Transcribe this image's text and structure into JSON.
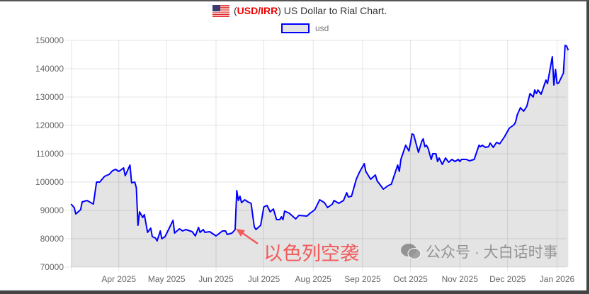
{
  "title": {
    "prefix": "(",
    "pair": "USD/IRR",
    "suffix": ") US Dollar to Rial Chart.",
    "flag_icon": "us-flag-icon"
  },
  "annotation": {
    "text": "以色列空袭"
  },
  "watermark": {
    "text": "公众号 · 大白话时事",
    "icon": "wechat-icon"
  },
  "colors": {
    "line": "#0000ff",
    "fill": "#e4e4e4",
    "annotation": "#f25a5a",
    "pair": "#ee0000"
  },
  "chart_data": {
    "type": "area",
    "legend": {
      "entries": [
        "usd"
      ],
      "placement": "top"
    },
    "ylim": [
      70000,
      150000
    ],
    "yticks": [
      70000,
      80000,
      90000,
      100000,
      110000,
      120000,
      130000,
      140000,
      150000
    ],
    "xlim": [
      "2025-03-01",
      "2026-01-08"
    ],
    "xticks": [
      {
        "date": "2025-04-01",
        "label": "Apr 2025"
      },
      {
        "date": "2025-05-01",
        "label": "May 2025"
      },
      {
        "date": "2025-06-01",
        "label": "Jun 2025"
      },
      {
        "date": "2025-07-01",
        "label": "Jul 2025"
      },
      {
        "date": "2025-08-01",
        "label": "Aug 2025"
      },
      {
        "date": "2025-09-01",
        "label": "Sep 2025"
      },
      {
        "date": "2025-10-01",
        "label": "Oct 2025"
      },
      {
        "date": "2025-11-01",
        "label": "Nov 2025"
      },
      {
        "date": "2025-12-01",
        "label": "Dec 2025"
      },
      {
        "date": "2026-01-01",
        "label": "Jan 2026"
      }
    ],
    "grid": true,
    "series": [
      {
        "name": "usd",
        "points": [
          [
            "2025-03-02",
            92250
          ],
          [
            "2025-03-04",
            91000
          ],
          [
            "2025-03-05",
            88750
          ],
          [
            "2025-03-08",
            90250
          ],
          [
            "2025-03-09",
            93000
          ],
          [
            "2025-03-12",
            93500
          ],
          [
            "2025-03-16",
            92250
          ],
          [
            "2025-03-18",
            100000
          ],
          [
            "2025-03-20",
            100000
          ],
          [
            "2025-03-23",
            102000
          ],
          [
            "2025-03-26",
            102750
          ],
          [
            "2025-03-28",
            104000
          ],
          [
            "2025-03-30",
            104500
          ],
          [
            "2025-04-01",
            103750
          ],
          [
            "2025-04-04",
            105000
          ],
          [
            "2025-04-05",
            102250
          ],
          [
            "2025-04-08",
            106000
          ],
          [
            "2025-04-09",
            99750
          ],
          [
            "2025-04-11",
            100000
          ],
          [
            "2025-04-12",
            98000
          ],
          [
            "2025-04-13",
            84750
          ],
          [
            "2025-04-14",
            89500
          ],
          [
            "2025-04-16",
            87500
          ],
          [
            "2025-04-17",
            88500
          ],
          [
            "2025-04-18",
            85500
          ],
          [
            "2025-04-19",
            82250
          ],
          [
            "2025-04-21",
            83750
          ],
          [
            "2025-04-22",
            80750
          ],
          [
            "2025-04-24",
            80250
          ],
          [
            "2025-04-25",
            79250
          ],
          [
            "2025-04-27",
            82750
          ],
          [
            "2025-04-28",
            80000
          ],
          [
            "2025-04-30",
            80750
          ],
          [
            "2025-05-02",
            83000
          ],
          [
            "2025-05-05",
            86500
          ],
          [
            "2025-05-06",
            82000
          ],
          [
            "2025-05-09",
            83500
          ],
          [
            "2025-05-11",
            82750
          ],
          [
            "2025-05-13",
            83250
          ],
          [
            "2025-05-17",
            82500
          ],
          [
            "2025-05-19",
            81000
          ],
          [
            "2025-05-21",
            84000
          ],
          [
            "2025-05-22",
            82250
          ],
          [
            "2025-05-24",
            83250
          ],
          [
            "2025-05-25",
            82250
          ],
          [
            "2025-05-28",
            82500
          ],
          [
            "2025-06-01",
            81000
          ],
          [
            "2025-06-05",
            82750
          ],
          [
            "2025-06-07",
            82750
          ],
          [
            "2025-06-08",
            81500
          ],
          [
            "2025-06-11",
            82000
          ],
          [
            "2025-06-13",
            83250
          ],
          [
            "2025-06-14",
            97000
          ],
          [
            "2025-06-15",
            93500
          ],
          [
            "2025-06-16",
            95000
          ],
          [
            "2025-06-17",
            92750
          ],
          [
            "2025-06-19",
            93750
          ],
          [
            "2025-06-21",
            93000
          ],
          [
            "2025-06-23",
            92500
          ],
          [
            "2025-06-25",
            84250
          ],
          [
            "2025-06-26",
            83250
          ],
          [
            "2025-06-29",
            84750
          ],
          [
            "2025-07-01",
            91250
          ],
          [
            "2025-07-03",
            91750
          ],
          [
            "2025-07-05",
            89500
          ],
          [
            "2025-07-07",
            90500
          ],
          [
            "2025-07-09",
            86750
          ],
          [
            "2025-07-11",
            86750
          ],
          [
            "2025-07-12",
            87750
          ],
          [
            "2025-07-13",
            86750
          ],
          [
            "2025-07-14",
            89750
          ],
          [
            "2025-07-17",
            89000
          ],
          [
            "2025-07-21",
            87000
          ],
          [
            "2025-07-23",
            88250
          ],
          [
            "2025-07-28",
            88000
          ],
          [
            "2025-07-30",
            89000
          ],
          [
            "2025-08-02",
            90250
          ],
          [
            "2025-08-05",
            93750
          ],
          [
            "2025-08-08",
            92750
          ],
          [
            "2025-08-10",
            91000
          ],
          [
            "2025-08-13",
            92250
          ],
          [
            "2025-08-14",
            93500
          ],
          [
            "2025-08-17",
            92500
          ],
          [
            "2025-08-20",
            93500
          ],
          [
            "2025-08-22",
            96250
          ],
          [
            "2025-08-23",
            94750
          ],
          [
            "2025-08-25",
            95000
          ],
          [
            "2025-08-28",
            101000
          ],
          [
            "2025-08-30",
            103500
          ],
          [
            "2025-09-02",
            106500
          ],
          [
            "2025-09-03",
            103750
          ],
          [
            "2025-09-06",
            101000
          ],
          [
            "2025-09-09",
            102500
          ],
          [
            "2025-09-10",
            100500
          ],
          [
            "2025-09-14",
            97500
          ],
          [
            "2025-09-17",
            98750
          ],
          [
            "2025-09-19",
            99250
          ],
          [
            "2025-09-23",
            106000
          ],
          [
            "2025-09-24",
            103750
          ],
          [
            "2025-09-25",
            108000
          ],
          [
            "2025-09-28",
            113000
          ],
          [
            "2025-09-30",
            111000
          ],
          [
            "2025-10-01",
            113750
          ],
          [
            "2025-10-02",
            117000
          ],
          [
            "2025-10-03",
            116750
          ],
          [
            "2025-10-06",
            110500
          ],
          [
            "2025-10-08",
            114250
          ],
          [
            "2025-10-09",
            115250
          ],
          [
            "2025-10-10",
            112500
          ],
          [
            "2025-10-11",
            113000
          ],
          [
            "2025-10-12",
            112000
          ],
          [
            "2025-10-14",
            108000
          ],
          [
            "2025-10-15",
            110000
          ],
          [
            "2025-10-17",
            110000
          ],
          [
            "2025-10-18",
            107250
          ],
          [
            "2025-10-19",
            108500
          ],
          [
            "2025-10-21",
            106250
          ],
          [
            "2025-10-23",
            108500
          ],
          [
            "2025-10-25",
            107000
          ],
          [
            "2025-10-27",
            108000
          ],
          [
            "2025-10-29",
            107250
          ],
          [
            "2025-10-31",
            108000
          ],
          [
            "2025-11-01",
            107250
          ],
          [
            "2025-11-02",
            108000
          ],
          [
            "2025-11-05",
            108000
          ],
          [
            "2025-11-07",
            107500
          ],
          [
            "2025-11-10",
            108000
          ],
          [
            "2025-11-13",
            113000
          ],
          [
            "2025-11-14",
            112500
          ],
          [
            "2025-11-15",
            113000
          ],
          [
            "2025-11-17",
            112250
          ],
          [
            "2025-11-19",
            112500
          ],
          [
            "2025-11-20",
            113750
          ],
          [
            "2025-11-22",
            112250
          ],
          [
            "2025-11-24",
            114000
          ],
          [
            "2025-11-26",
            113500
          ],
          [
            "2025-11-29",
            116000
          ],
          [
            "2025-12-02",
            119000
          ],
          [
            "2025-12-05",
            120250
          ],
          [
            "2025-12-06",
            121250
          ],
          [
            "2025-12-07",
            123750
          ],
          [
            "2025-12-09",
            126250
          ],
          [
            "2025-12-11",
            125000
          ],
          [
            "2025-12-13",
            126750
          ],
          [
            "2025-12-15",
            131250
          ],
          [
            "2025-12-17",
            130000
          ],
          [
            "2025-12-18",
            132500
          ],
          [
            "2025-12-19",
            131250
          ],
          [
            "2025-12-20",
            132500
          ],
          [
            "2025-12-22",
            131000
          ],
          [
            "2025-12-25",
            136000
          ],
          [
            "2025-12-26",
            134750
          ],
          [
            "2025-12-29",
            144250
          ],
          [
            "2025-12-30",
            134250
          ],
          [
            "2025-12-31",
            139750
          ],
          [
            "2026-01-01",
            134750
          ],
          [
            "2026-01-02",
            135000
          ],
          [
            "2026-01-05",
            138500
          ],
          [
            "2026-01-06",
            148250
          ],
          [
            "2026-01-07",
            148000
          ],
          [
            "2026-01-08",
            146500
          ]
        ]
      }
    ]
  }
}
